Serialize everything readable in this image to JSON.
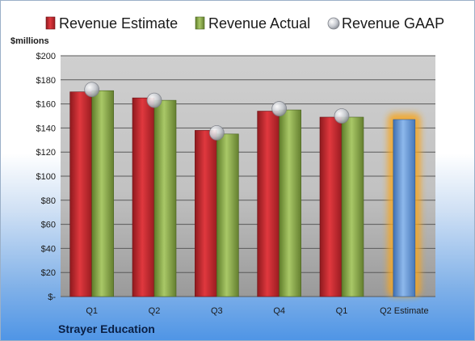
{
  "chart_data": {
    "type": "bar",
    "title": "",
    "unit_label": "$millions",
    "company": "Strayer Education",
    "categories": [
      "Q1",
      "Q2",
      "Q3",
      "Q4",
      "Q1",
      "Q2 Estimate"
    ],
    "ylim": [
      0,
      200
    ],
    "y_ticks": [
      "$-",
      "$20",
      "$40",
      "$60",
      "$80",
      "$100",
      "$120",
      "$140",
      "$160",
      "$180",
      "$200"
    ],
    "y_tick_values": [
      0,
      20,
      40,
      60,
      80,
      100,
      120,
      140,
      160,
      180,
      200
    ],
    "grid": true,
    "legend_position": "top",
    "series": [
      {
        "name": "Revenue Estimate",
        "type": "bar",
        "color": "#c0272d",
        "values": [
          170,
          165,
          138,
          154,
          149,
          null
        ]
      },
      {
        "name": "Revenue Actual",
        "type": "bar",
        "color": "#8fb04a",
        "values": [
          171,
          163,
          135,
          155,
          149,
          null
        ]
      },
      {
        "name": "Revenue GAAP",
        "type": "marker",
        "color": "#b8bcc4",
        "values": [
          172,
          163,
          136,
          156,
          150,
          null
        ]
      },
      {
        "name": "Q2 Estimate",
        "type": "bar",
        "color": "#6e9ed6",
        "highlight": "#f5a623",
        "values": [
          null,
          null,
          null,
          null,
          null,
          147
        ]
      }
    ]
  }
}
